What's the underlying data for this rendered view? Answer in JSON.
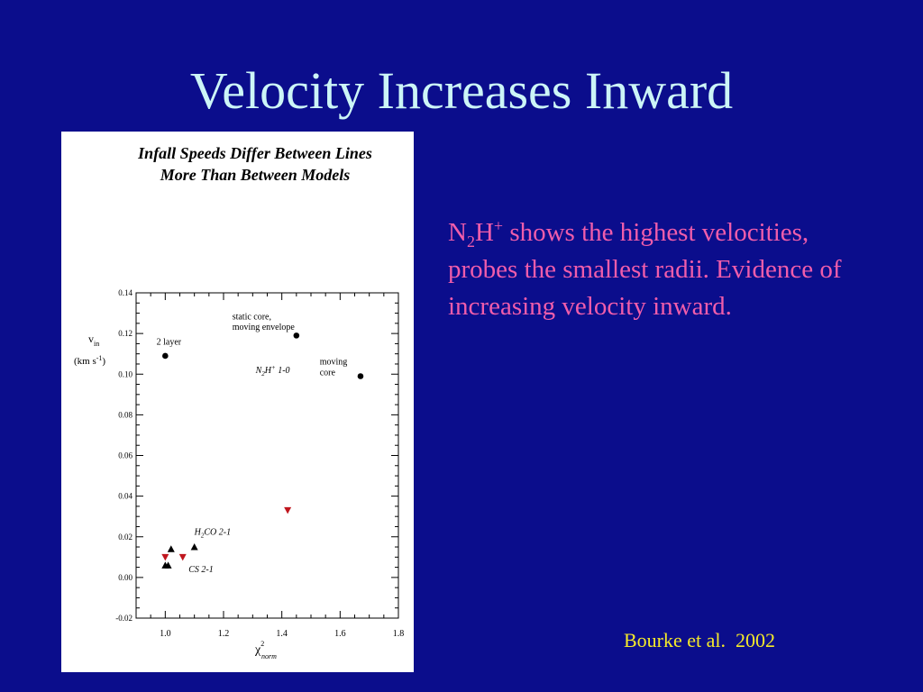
{
  "slide": {
    "title": "Velocity Increases Inward",
    "body": {
      "species": "N",
      "sub": "2",
      "mid": "H",
      "sup": "+",
      "text": " shows the highest velocities, probes the smallest radii. Evidence of increasing velocity inward."
    },
    "citation": "Bourke et al.  2002"
  },
  "colors": {
    "background": "#0b0d8c",
    "title": "#ccf5f7",
    "body_text": "#f05dab",
    "citation": "#f5ea2a",
    "triangle_down": "#c0161e",
    "triangle_up": "#000000"
  },
  "chart_data": {
    "type": "scatter",
    "title": "Infall Speeds Differ Between Lines",
    "subtitle": "More Than Between Models",
    "ylabel": "v",
    "ylabel_sub": "in",
    "yunit": "(km s",
    "yunit_sup": "-1",
    "yunit_end": ")",
    "xlabel": "χ",
    "xlabel_sup": "2",
    "xlabel_sub": "norm",
    "xlim": [
      0.9,
      1.8
    ],
    "ylim": [
      -0.02,
      0.14
    ],
    "xticks": [
      1.0,
      1.2,
      1.4,
      1.6,
      1.8
    ],
    "xtick_labels": [
      "1.0",
      "1.2",
      "1.4",
      "1.6",
      "1.8"
    ],
    "yticks": [
      -0.02,
      0.0,
      0.02,
      0.04,
      0.06,
      0.08,
      0.1,
      0.12,
      0.14
    ],
    "ytick_labels": [
      "-0.02",
      "0.00",
      "0.02",
      "0.04",
      "0.06",
      "0.08",
      "0.10",
      "0.12",
      "0.14"
    ],
    "grid": false,
    "series": [
      {
        "name": "N2H+ 1-0",
        "marker": "circle",
        "color": "#000000",
        "points": [
          {
            "x": 1.0,
            "y": 0.109
          },
          {
            "x": 1.45,
            "y": 0.119
          },
          {
            "x": 1.67,
            "y": 0.099
          }
        ]
      },
      {
        "name": "H2CO 2-1",
        "marker": "triangle-down",
        "color": "#c0161e",
        "points": [
          {
            "x": 1.0,
            "y": 0.01
          },
          {
            "x": 1.06,
            "y": 0.01
          },
          {
            "x": 1.42,
            "y": 0.033
          }
        ]
      },
      {
        "name": "CS 2-1",
        "marker": "triangle-up",
        "color": "#000000",
        "points": [
          {
            "x": 1.0,
            "y": 0.006
          },
          {
            "x": 1.01,
            "y": 0.006
          },
          {
            "x": 1.02,
            "y": 0.014
          },
          {
            "x": 1.1,
            "y": 0.015
          }
        ]
      }
    ],
    "annotations": [
      {
        "text": "2 layer",
        "x": 0.97,
        "y": 0.1145
      },
      {
        "text": "static core,",
        "x": 1.23,
        "y": 0.127
      },
      {
        "text": "moving envelope",
        "x": 1.23,
        "y": 0.1218
      },
      {
        "text": "moving",
        "x": 1.53,
        "y": 0.1047
      },
      {
        "text": "core",
        "x": 1.53,
        "y": 0.0995
      },
      {
        "text": "N",
        "sub": "2",
        "after": "H",
        "sup": "+",
        "end": " 1-0",
        "x": 1.31,
        "y": 0.1005
      },
      {
        "text": "H",
        "sub": "2",
        "after": "CO 2-1",
        "x": 1.1,
        "y": 0.021
      },
      {
        "text": "CS 2-1",
        "x": 1.08,
        "y": 0.0025
      }
    ]
  }
}
